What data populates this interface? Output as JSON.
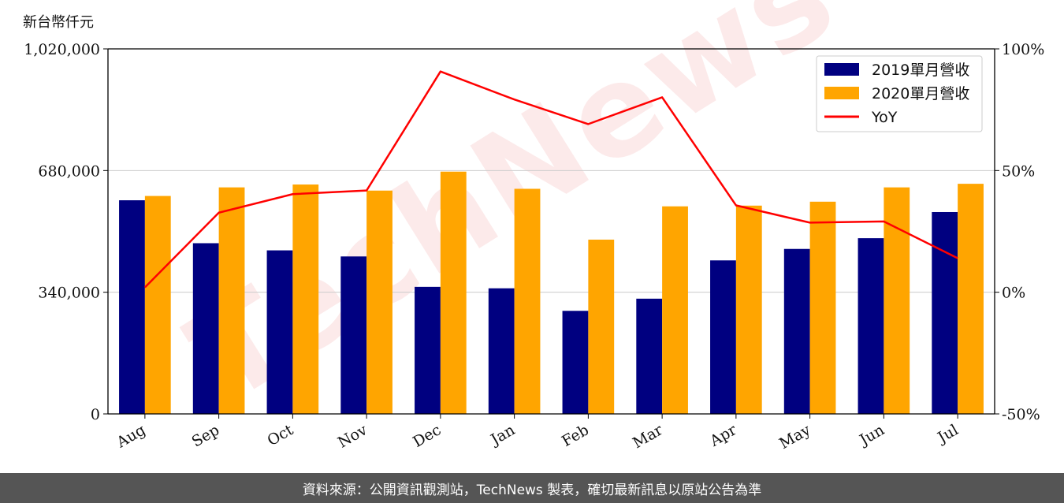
{
  "unit_label": "新台幣仟元",
  "footer_text": "資料來源：公開資訊觀測站，TechNews 製表，確切最新訊息以原站公告為準",
  "watermark": "TechNews",
  "colors": {
    "series_2019": "#000080",
    "series_2020": "#FFA500",
    "yoy": "#FF0000",
    "watermark": "#f0a0a0"
  },
  "chart_data": {
    "type": "bar",
    "categories": [
      "Aug",
      "Sep",
      "Oct",
      "Nov",
      "Dec",
      "Jan",
      "Feb",
      "Mar",
      "Apr",
      "May",
      "Jun",
      "Jul"
    ],
    "series": [
      {
        "name": "2019單月營收",
        "values": [
          597000,
          477000,
          457000,
          440000,
          355000,
          351000,
          288000,
          322000,
          429000,
          461000,
          491000,
          564000
        ]
      },
      {
        "name": "2020單月營收",
        "values": [
          609000,
          633000,
          641000,
          624000,
          677000,
          629000,
          487000,
          580000,
          582000,
          593000,
          633000,
          643000
        ]
      }
    ],
    "line_series": {
      "name": "YoY",
      "axis": "right",
      "values": [
        2.0,
        32.7,
        40.3,
        41.8,
        90.7,
        79.2,
        69.1,
        80.1,
        35.7,
        28.6,
        29.1,
        14.0
      ]
    },
    "ylim": [
      0,
      1020000
    ],
    "yticks": [
      "0",
      "340,000",
      "680,000",
      "1,020,000"
    ],
    "y2lim": [
      -50,
      100
    ],
    "y2ticks": [
      "-50%",
      "0%",
      "50%",
      "100%"
    ],
    "grid": "horizontal",
    "legend_placement": "top-right"
  }
}
